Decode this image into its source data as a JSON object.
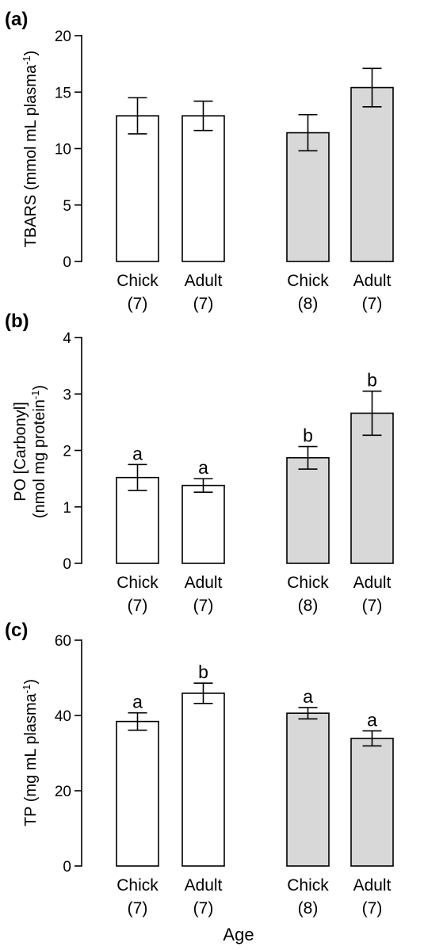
{
  "chart_data": [
    {
      "type": "bar",
      "panel_label": "(a)",
      "categories": [
        "Chick",
        "Adult",
        "Chick",
        "Adult"
      ],
      "sample_sizes": [
        "(7)",
        "(7)",
        "(8)",
        "(7)"
      ],
      "values": [
        12.9,
        12.9,
        11.4,
        15.4
      ],
      "errors": [
        1.6,
        1.3,
        1.6,
        1.7
      ],
      "fills": [
        "#ffffff",
        "#ffffff",
        "#d8d8d8",
        "#d8d8d8"
      ],
      "significance_letters": [
        "",
        "",
        "",
        ""
      ],
      "ylabel_lines": [
        "TBARS (mmol mL plasma",
        "-1",
        ")"
      ],
      "ylim": [
        0,
        20
      ],
      "yticks": [
        0,
        5,
        10,
        15,
        20
      ],
      "ytick_labels": [
        "0",
        "5",
        "10",
        "15",
        "20"
      ],
      "grid": false
    },
    {
      "type": "bar",
      "panel_label": "(b)",
      "categories": [
        "Chick",
        "Adult",
        "Chick",
        "Adult"
      ],
      "sample_sizes": [
        "(7)",
        "(7)",
        "(8)",
        "(7)"
      ],
      "values": [
        1.52,
        1.38,
        1.87,
        2.66
      ],
      "errors": [
        0.23,
        0.12,
        0.2,
        0.39
      ],
      "fills": [
        "#ffffff",
        "#ffffff",
        "#d8d8d8",
        "#d8d8d8"
      ],
      "significance_letters": [
        "a",
        "a",
        "b",
        "b"
      ],
      "ylabel_lines": [
        "PO [Carbonyl]",
        "(nmol mg protein",
        "-1",
        ")"
      ],
      "ylim": [
        0,
        4
      ],
      "yticks": [
        0,
        1,
        2,
        3,
        4
      ],
      "ytick_labels": [
        "0",
        "1",
        "2",
        "3",
        "4"
      ],
      "grid": false
    },
    {
      "type": "bar",
      "panel_label": "(c)",
      "categories": [
        "Chick",
        "Adult",
        "Chick",
        "Adult"
      ],
      "sample_sizes": [
        "(7)",
        "(7)",
        "(8)",
        "(7)"
      ],
      "values": [
        38.4,
        45.9,
        40.6,
        33.9
      ],
      "errors": [
        2.3,
        2.7,
        1.5,
        2.0
      ],
      "fills": [
        "#ffffff",
        "#ffffff",
        "#d8d8d8",
        "#d8d8d8"
      ],
      "significance_letters": [
        "a",
        "b",
        "a",
        "a"
      ],
      "ylabel_lines": [
        "TP (mg mL plasma",
        "-1",
        ")"
      ],
      "ylim": [
        0,
        60
      ],
      "yticks": [
        0,
        20,
        40,
        60
      ],
      "ytick_labels": [
        "0",
        "20",
        "40",
        "60"
      ],
      "grid": false
    }
  ],
  "xlabel": "Age"
}
